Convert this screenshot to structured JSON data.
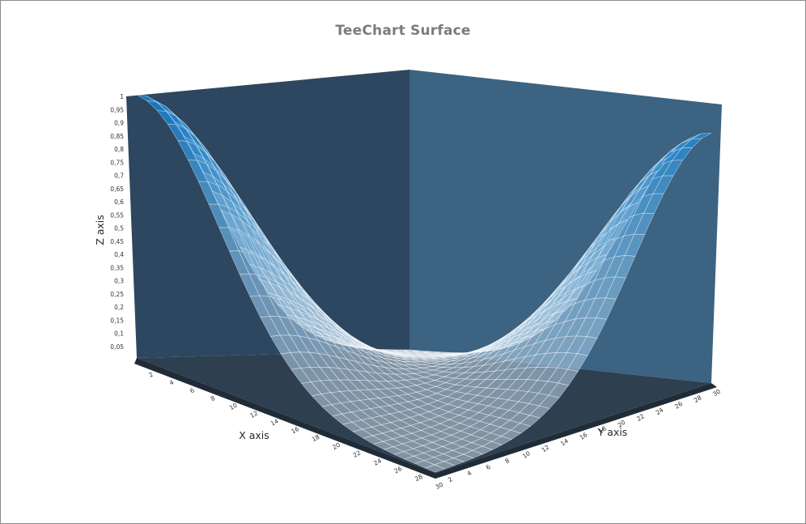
{
  "chart_data": {
    "type": "surface",
    "title": "TeeChart Surface",
    "xlabel": "X axis",
    "ylabel": "Y axis",
    "zlabel": "Z axis",
    "x": [
      1,
      30
    ],
    "y": [
      1,
      30
    ],
    "zlim": [
      0,
      1
    ],
    "grid_size": 30,
    "peaks": [
      {
        "x": 1,
        "y": 1,
        "z": 1
      },
      {
        "x": 30,
        "y": 30,
        "z": 0.9
      }
    ],
    "x_ticks": [
      "2",
      "4",
      "6",
      "8",
      "10",
      "12",
      "14",
      "16",
      "18",
      "20",
      "22",
      "24",
      "26",
      "28",
      "30"
    ],
    "y_ticks": [
      "2",
      "4",
      "6",
      "8",
      "10",
      "12",
      "14",
      "16",
      "18",
      "20",
      "22",
      "24",
      "26",
      "28",
      "30"
    ],
    "z_ticks": [
      "0,05",
      "0,1",
      "0,15",
      "0,2",
      "0,25",
      "0,3",
      "0,35",
      "0,4",
      "0,45",
      "0,5",
      "0,55",
      "0,6",
      "0,65",
      "0,7",
      "0,75",
      "0,8",
      "0,85",
      "0,9",
      "0,95",
      "1"
    ],
    "colors": {
      "left_wall": "#2e4760",
      "back_wall": "#3c6381",
      "floor": "#2e3f50",
      "floor_edge": "#1f2c38",
      "surface_high": "#1278c2",
      "surface_low": "#d8e6f2",
      "mesh": "#ffffff"
    }
  }
}
